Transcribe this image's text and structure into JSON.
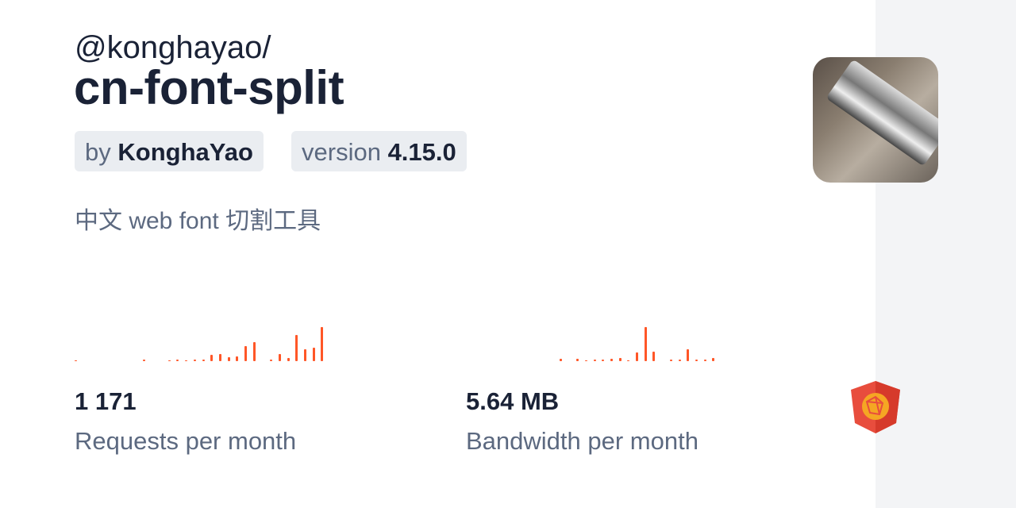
{
  "package": {
    "scope": "@konghayao/",
    "name": "cn-font-split",
    "author_prefix": "by",
    "author": "KonghaYao",
    "version_prefix": "version",
    "version": "4.15.0",
    "description": "中文 web font 切割工具"
  },
  "stats": [
    {
      "value": "1 171",
      "label": "Requests per month",
      "chart_data": {
        "type": "bar",
        "values": [
          3,
          0,
          0,
          0,
          0,
          0,
          0,
          0,
          5,
          0,
          0,
          3,
          5,
          3,
          5,
          5,
          24,
          28,
          15,
          18,
          57,
          72,
          0,
          5,
          28,
          12,
          98,
          44,
          50,
          127
        ],
        "color": "#ff5627"
      }
    },
    {
      "value": "5.64 MB",
      "label": "Bandwidth per month",
      "chart_data": {
        "type": "bar",
        "values": [
          0,
          0,
          0,
          0,
          0,
          0,
          0,
          0,
          0,
          0,
          0,
          8,
          0,
          10,
          3,
          5,
          7,
          10,
          13,
          3,
          33,
          127,
          36,
          0,
          5,
          5,
          45,
          5,
          5,
          13
        ],
        "color": "#ff5627"
      }
    }
  ],
  "icons": {
    "logo": "jsdelivr-logo",
    "avatar": "harmonica-avatar"
  }
}
